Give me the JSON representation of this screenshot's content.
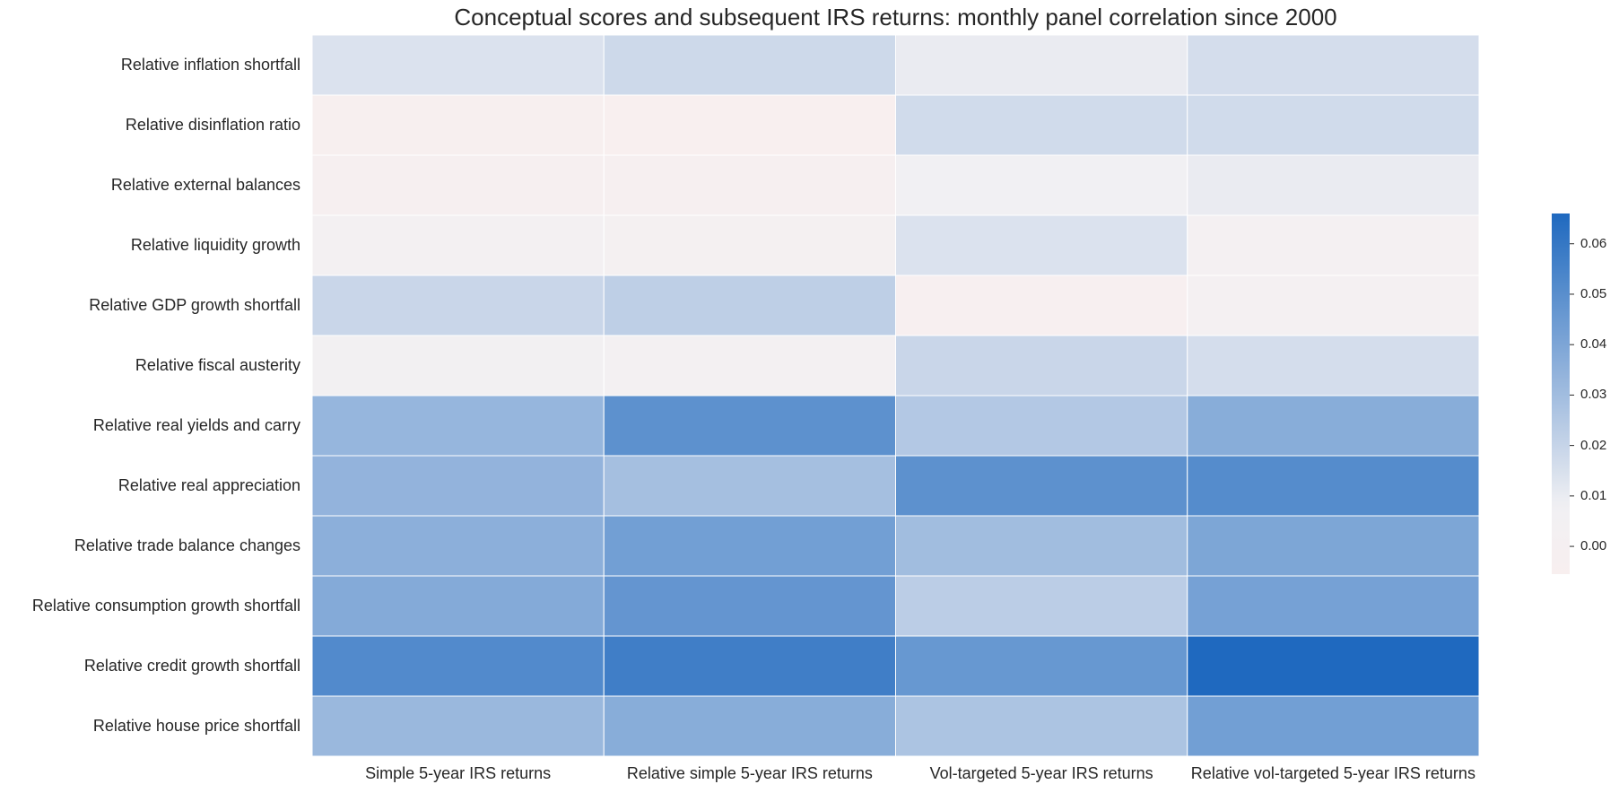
{
  "chart_data": {
    "type": "heatmap",
    "title": "Conceptual scores and subsequent IRS returns: monthly panel correlation since 2000",
    "rows": [
      "Relative inflation shortfall",
      "Relative disinflation ratio",
      "Relative external balances",
      "Relative liquidity growth",
      "Relative GDP growth shortfall",
      "Relative fiscal austerity",
      "Relative real yields and carry",
      "Relative real appreciation",
      "Relative trade balance changes",
      "Relative consumption growth shortfall",
      "Relative credit growth shortfall",
      "Relative house price shortfall"
    ],
    "columns": [
      "Simple 5-year IRS returns",
      "Relative simple 5-year IRS returns",
      "Vol-targeted 5-year IRS returns",
      "Relative vol-targeted 5-year IRS returns"
    ],
    "values": [
      [
        0.014,
        0.018,
        0.01,
        0.016
      ],
      [
        -0.004,
        -0.006,
        0.017,
        0.017
      ],
      [
        -0.002,
        -0.001,
        0.008,
        0.01
      ],
      [
        0.004,
        0.002,
        0.014,
        0.003
      ],
      [
        0.019,
        0.022,
        -0.003,
        0.003
      ],
      [
        0.006,
        0.004,
        0.019,
        0.016
      ],
      [
        0.033,
        0.049,
        0.025,
        0.037
      ],
      [
        0.034,
        0.029,
        0.049,
        0.051
      ],
      [
        0.036,
        0.043,
        0.03,
        0.04
      ],
      [
        0.038,
        0.047,
        0.023,
        0.042
      ],
      [
        0.052,
        0.057,
        0.046,
        0.066
      ],
      [
        0.032,
        0.037,
        0.027,
        0.043
      ]
    ],
    "colorbar": {
      "ticks": [
        "0.00",
        "0.01",
        "0.02",
        "0.03",
        "0.04",
        "0.05",
        "0.06"
      ],
      "tick_values": [
        0.0,
        0.01,
        0.02,
        0.03,
        0.04,
        0.05,
        0.06
      ],
      "vmin": -0.0055,
      "vcenter": 0.008,
      "vmax": 0.066,
      "low_color": "#f8efef",
      "mid_color": "#f1f0f3",
      "high_color": "#1f69bf"
    }
  }
}
